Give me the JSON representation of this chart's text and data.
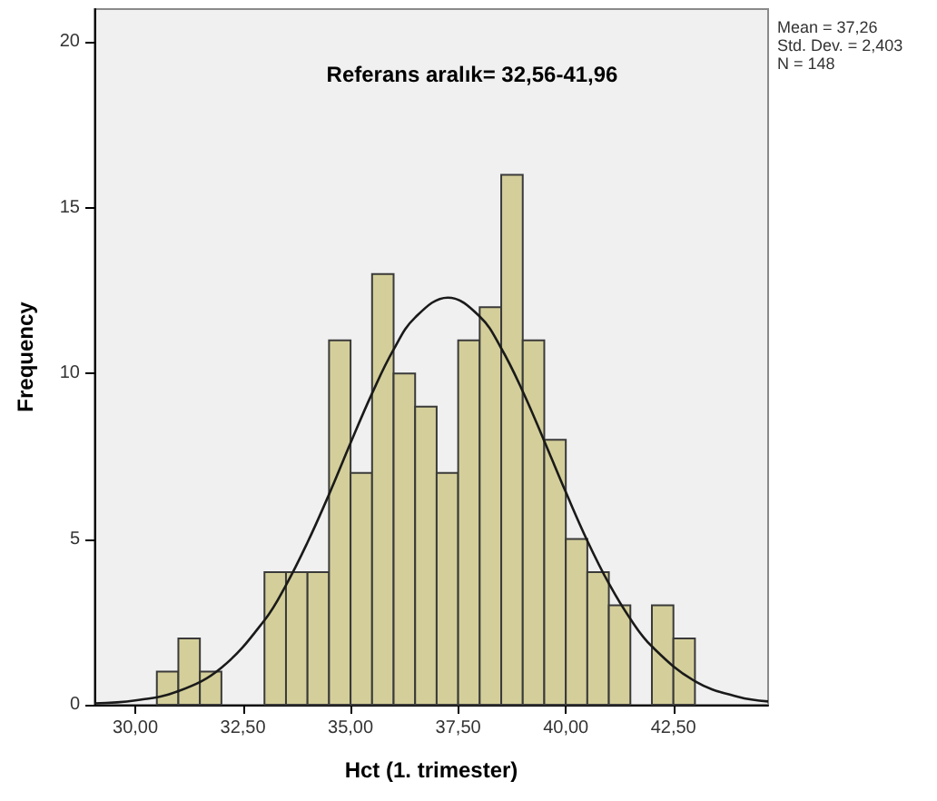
{
  "chart_data": {
    "type": "histogram",
    "title": "Referans aralık= 32,56-41,96",
    "xlabel": "Hct (1. trimester)",
    "ylabel": "Frequency",
    "bins": [
      30.5,
      31,
      31.5,
      32,
      32.5,
      33,
      33.5,
      34,
      34.5,
      35,
      35.5,
      36,
      36.5,
      37,
      37.5,
      38,
      38.5,
      39,
      39.5,
      40,
      40.5,
      41,
      41.5,
      42,
      42.5,
      43
    ],
    "values": [
      1,
      2,
      1,
      0,
      0,
      4,
      4,
      4,
      11,
      7,
      13,
      10,
      9,
      7,
      11,
      12,
      16,
      11,
      8,
      5,
      4,
      3,
      0,
      3,
      2
    ],
    "color": "#d4cf9a",
    "series": [
      {
        "type": "line",
        "color": "#1a1a1a",
        "x": [
          29.05,
          30,
          31,
          32,
          33,
          33.5,
          34,
          34.5,
          35,
          35.5,
          36,
          36.5,
          37.26,
          38,
          38.5,
          39,
          39.5,
          40,
          40.5,
          41,
          41.5,
          42,
          43,
          44,
          44.7
        ],
        "values": [
          0.04,
          0.13,
          0.41,
          1.12,
          2.55,
          3.61,
          4.9,
          6.35,
          7.9,
          9.4,
          10.72,
          11.69,
          12.29,
          11.72,
          10.76,
          9.46,
          7.96,
          6.42,
          4.95,
          3.66,
          2.59,
          1.76,
          0.71,
          0.24,
          0.1
        ]
      }
    ],
    "xlim": [
      29.05,
      44.7
    ],
    "xticks": [
      {
        "value": 30,
        "label": "30,00"
      },
      {
        "value": 32.5,
        "label": "32,50"
      },
      {
        "value": 35,
        "label": "35,00"
      },
      {
        "value": 37.5,
        "label": "37,50"
      },
      {
        "value": 40,
        "label": "40,00"
      },
      {
        "value": 42.5,
        "label": "42,50"
      }
    ],
    "ylim": [
      0,
      21
    ],
    "yticks": [
      0,
      5,
      10,
      15,
      20
    ],
    "annotations": [
      "Mean = 37,26",
      "Std. Dev. = 2,403",
      "N = 148"
    ]
  }
}
